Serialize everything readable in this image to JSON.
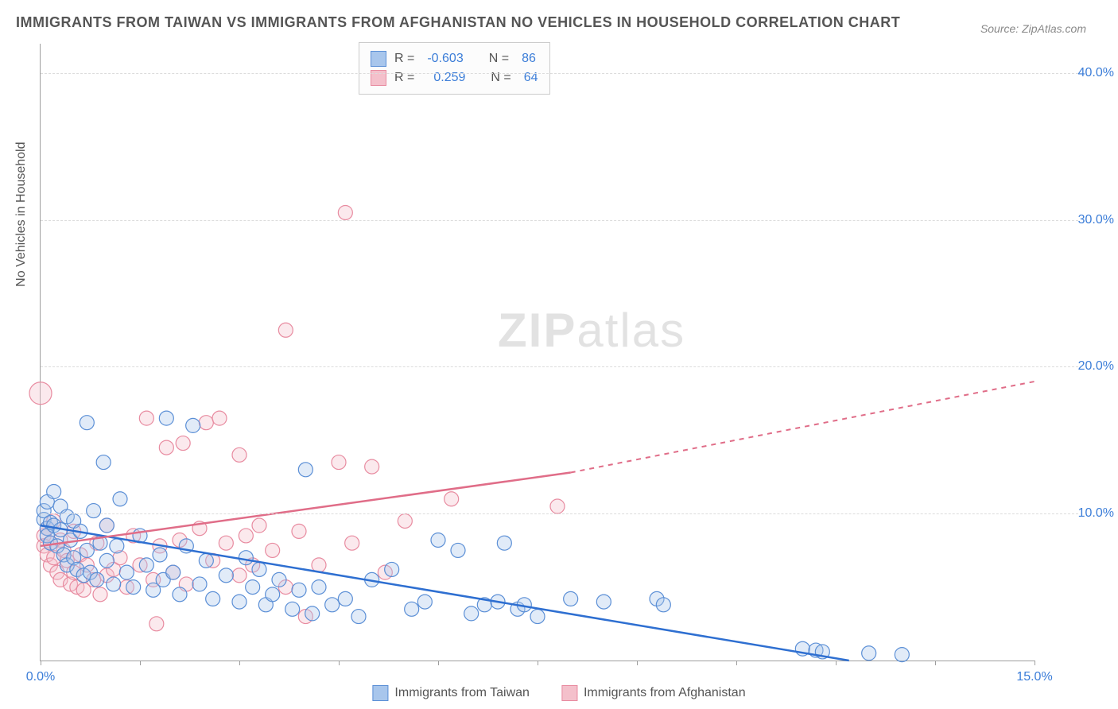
{
  "title": "IMMIGRANTS FROM TAIWAN VS IMMIGRANTS FROM AFGHANISTAN NO VEHICLES IN HOUSEHOLD CORRELATION CHART",
  "source": "Source: ZipAtlas.com",
  "watermark_a": "ZIP",
  "watermark_b": "atlas",
  "y_axis_label": "No Vehicles in Household",
  "chart": {
    "type": "scatter",
    "xlim": [
      0,
      15
    ],
    "ylim": [
      0,
      42
    ],
    "x_ticks": [
      0,
      1.5,
      3,
      4.5,
      6,
      7.5,
      9,
      10.5,
      12,
      13.5,
      15
    ],
    "x_tick_labels": {
      "0": "0.0%",
      "15": "15.0%"
    },
    "y_gridlines": [
      10,
      20,
      30,
      40
    ],
    "y_tick_labels": {
      "10": "10.0%",
      "20": "20.0%",
      "30": "30.0%",
      "40": "40.0%"
    },
    "background_color": "#ffffff",
    "grid_color": "#dcdcdc",
    "axis_color": "#9e9e9e",
    "text_color": "#555555",
    "value_color": "#3b7dd8"
  },
  "series": [
    {
      "name": "Immigrants from Taiwan",
      "fill": "#a8c6ec",
      "stroke": "#5b8fd6",
      "line_color": "#2e6fd1",
      "r_label": "R =",
      "r_value": "-0.603",
      "n_label": "N =",
      "n_value": "86",
      "trend": {
        "x1": 0,
        "y1": 9.2,
        "x2": 12.2,
        "y2": 0,
        "dash_from_x": 15
      },
      "points": [
        [
          0.05,
          9.6
        ],
        [
          0.05,
          10.2
        ],
        [
          0.1,
          9.0
        ],
        [
          0.1,
          8.5
        ],
        [
          0.1,
          10.8
        ],
        [
          0.15,
          9.4
        ],
        [
          0.15,
          8.0
        ],
        [
          0.2,
          11.5
        ],
        [
          0.2,
          9.2
        ],
        [
          0.25,
          7.8
        ],
        [
          0.3,
          10.5
        ],
        [
          0.3,
          8.9
        ],
        [
          0.35,
          7.2
        ],
        [
          0.4,
          9.8
        ],
        [
          0.4,
          6.5
        ],
        [
          0.45,
          8.2
        ],
        [
          0.5,
          7.0
        ],
        [
          0.5,
          9.5
        ],
        [
          0.55,
          6.2
        ],
        [
          0.6,
          8.8
        ],
        [
          0.65,
          5.8
        ],
        [
          0.7,
          16.2
        ],
        [
          0.7,
          7.5
        ],
        [
          0.75,
          6.0
        ],
        [
          0.8,
          10.2
        ],
        [
          0.85,
          5.5
        ],
        [
          0.9,
          8.0
        ],
        [
          0.95,
          13.5
        ],
        [
          1.0,
          6.8
        ],
        [
          1.0,
          9.2
        ],
        [
          1.1,
          5.2
        ],
        [
          1.15,
          7.8
        ],
        [
          1.2,
          11.0
        ],
        [
          1.3,
          6.0
        ],
        [
          1.4,
          5.0
        ],
        [
          1.5,
          8.5
        ],
        [
          1.6,
          6.5
        ],
        [
          1.7,
          4.8
        ],
        [
          1.8,
          7.2
        ],
        [
          1.85,
          5.5
        ],
        [
          1.9,
          16.5
        ],
        [
          2.0,
          6.0
        ],
        [
          2.1,
          4.5
        ],
        [
          2.2,
          7.8
        ],
        [
          2.3,
          16.0
        ],
        [
          2.4,
          5.2
        ],
        [
          2.5,
          6.8
        ],
        [
          2.6,
          4.2
        ],
        [
          2.8,
          5.8
        ],
        [
          3.0,
          4.0
        ],
        [
          3.1,
          7.0
        ],
        [
          3.2,
          5.0
        ],
        [
          3.3,
          6.2
        ],
        [
          3.4,
          3.8
        ],
        [
          3.5,
          4.5
        ],
        [
          3.6,
          5.5
        ],
        [
          3.8,
          3.5
        ],
        [
          3.9,
          4.8
        ],
        [
          4.0,
          13.0
        ],
        [
          4.1,
          3.2
        ],
        [
          4.2,
          5.0
        ],
        [
          4.4,
          3.8
        ],
        [
          4.6,
          4.2
        ],
        [
          4.8,
          3.0
        ],
        [
          5.0,
          5.5
        ],
        [
          5.3,
          6.2
        ],
        [
          5.6,
          3.5
        ],
        [
          5.8,
          4.0
        ],
        [
          6.0,
          8.2
        ],
        [
          6.3,
          7.5
        ],
        [
          6.5,
          3.2
        ],
        [
          6.7,
          3.8
        ],
        [
          6.9,
          4.0
        ],
        [
          7.0,
          8.0
        ],
        [
          7.2,
          3.5
        ],
        [
          7.3,
          3.8
        ],
        [
          7.5,
          3.0
        ],
        [
          8.0,
          4.2
        ],
        [
          8.5,
          4.0
        ],
        [
          9.3,
          4.2
        ],
        [
          9.4,
          3.8
        ],
        [
          11.5,
          0.8
        ],
        [
          11.7,
          0.7
        ],
        [
          11.8,
          0.6
        ],
        [
          12.5,
          0.5
        ],
        [
          13.0,
          0.4
        ]
      ]
    },
    {
      "name": "Immigrants from Afghanistan",
      "fill": "#f4c0cb",
      "stroke": "#e88ba0",
      "line_color": "#e06d88",
      "r_label": "R =",
      "r_value": "0.259",
      "n_label": "N =",
      "n_value": "64",
      "trend": {
        "x1": 0,
        "y1": 7.8,
        "x2": 8.0,
        "y2": 12.8,
        "dash_from_x": 8.0,
        "dash_x2": 15,
        "dash_y2": 19.0
      },
      "points": [
        [
          0.0,
          18.2
        ],
        [
          0.05,
          8.5
        ],
        [
          0.05,
          7.8
        ],
        [
          0.1,
          9.0
        ],
        [
          0.1,
          7.2
        ],
        [
          0.15,
          8.0
        ],
        [
          0.15,
          6.5
        ],
        [
          0.2,
          9.5
        ],
        [
          0.2,
          7.0
        ],
        [
          0.25,
          6.0
        ],
        [
          0.3,
          8.2
        ],
        [
          0.3,
          5.5
        ],
        [
          0.35,
          7.5
        ],
        [
          0.4,
          6.8
        ],
        [
          0.45,
          5.2
        ],
        [
          0.5,
          8.8
        ],
        [
          0.5,
          6.0
        ],
        [
          0.55,
          5.0
        ],
        [
          0.6,
          7.2
        ],
        [
          0.65,
          4.8
        ],
        [
          0.7,
          6.5
        ],
        [
          0.8,
          5.5
        ],
        [
          0.85,
          8.0
        ],
        [
          0.9,
          4.5
        ],
        [
          1.0,
          9.2
        ],
        [
          1.0,
          5.8
        ],
        [
          1.1,
          6.2
        ],
        [
          1.2,
          7.0
        ],
        [
          1.3,
          5.0
        ],
        [
          1.4,
          8.5
        ],
        [
          1.5,
          6.5
        ],
        [
          1.6,
          16.5
        ],
        [
          1.7,
          5.5
        ],
        [
          1.75,
          2.5
        ],
        [
          1.8,
          7.8
        ],
        [
          1.9,
          14.5
        ],
        [
          2.0,
          6.0
        ],
        [
          2.1,
          8.2
        ],
        [
          2.15,
          14.8
        ],
        [
          2.2,
          5.2
        ],
        [
          2.4,
          9.0
        ],
        [
          2.5,
          16.2
        ],
        [
          2.6,
          6.8
        ],
        [
          2.7,
          16.5
        ],
        [
          2.8,
          8.0
        ],
        [
          3.0,
          14.0
        ],
        [
          3.0,
          5.8
        ],
        [
          3.1,
          8.5
        ],
        [
          3.2,
          6.5
        ],
        [
          3.3,
          9.2
        ],
        [
          3.5,
          7.5
        ],
        [
          3.7,
          22.5
        ],
        [
          3.7,
          5.0
        ],
        [
          3.9,
          8.8
        ],
        [
          4.0,
          3.0
        ],
        [
          4.2,
          6.5
        ],
        [
          4.5,
          13.5
        ],
        [
          4.6,
          30.5
        ],
        [
          4.7,
          8.0
        ],
        [
          5.0,
          13.2
        ],
        [
          5.2,
          6.0
        ],
        [
          5.5,
          9.5
        ],
        [
          6.2,
          11.0
        ],
        [
          7.8,
          10.5
        ]
      ]
    }
  ]
}
